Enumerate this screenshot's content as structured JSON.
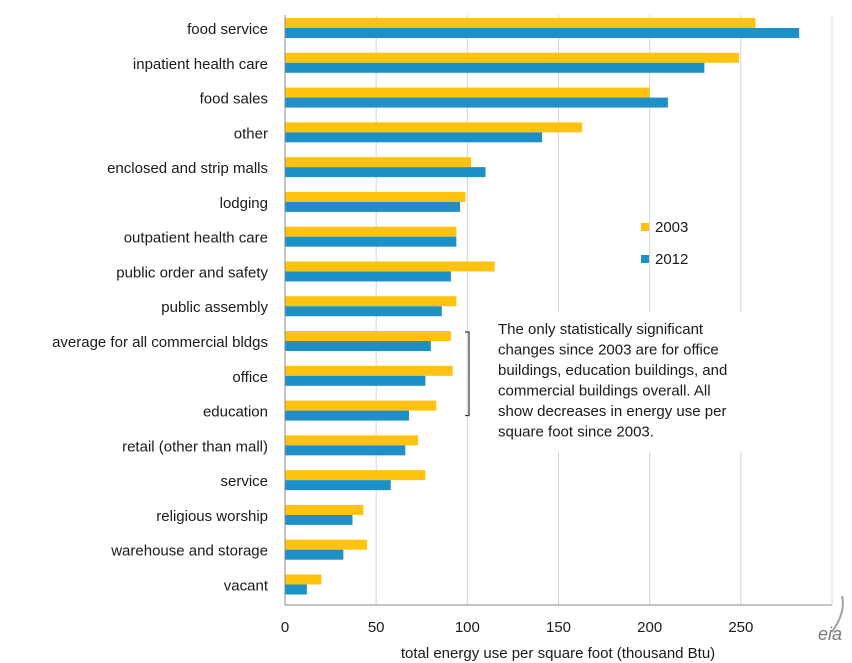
{
  "chart_data": {
    "type": "bar",
    "orientation": "horizontal",
    "categories": [
      "food service",
      "inpatient health care",
      "food sales",
      "other",
      "enclosed and strip malls",
      "lodging",
      "outpatient health care",
      "public order and safety",
      "public assembly",
      "average for all commercial bldgs",
      "office",
      "education",
      "retail (other than mall)",
      "service",
      "religious worship",
      "warehouse and storage",
      "vacant"
    ],
    "series": [
      {
        "name": "2003",
        "color": "#FFC20E",
        "values": [
          258,
          249,
          200,
          163,
          102,
          99,
          94,
          115,
          94,
          91,
          92,
          83,
          73,
          77,
          43,
          45,
          20
        ]
      },
      {
        "name": "2012",
        "color": "#1E90C8",
        "values": [
          282,
          230,
          210,
          141,
          110,
          96,
          94,
          91,
          86,
          80,
          77,
          68,
          66,
          58,
          37,
          32,
          12
        ]
      }
    ],
    "xlabel": "total energy use per square foot (thousand Btu)",
    "ylabel": "",
    "xlim": [
      0,
      300
    ],
    "xticks": [
      "0",
      "50",
      "100",
      "150",
      "200",
      "250"
    ],
    "legend_position": "right, middle-upper",
    "grid": "vertical gridlines",
    "annotation": {
      "lines": [
        "The only statistically significant",
        "changes since 2003 are for office",
        "buildings, education buildings, and",
        "commercial buildings overall. All",
        "show decreases in energy use per",
        "square foot since 2003."
      ],
      "bracket_categories": [
        "average for all commercial bldgs",
        "education"
      ]
    },
    "logo": "eia"
  }
}
